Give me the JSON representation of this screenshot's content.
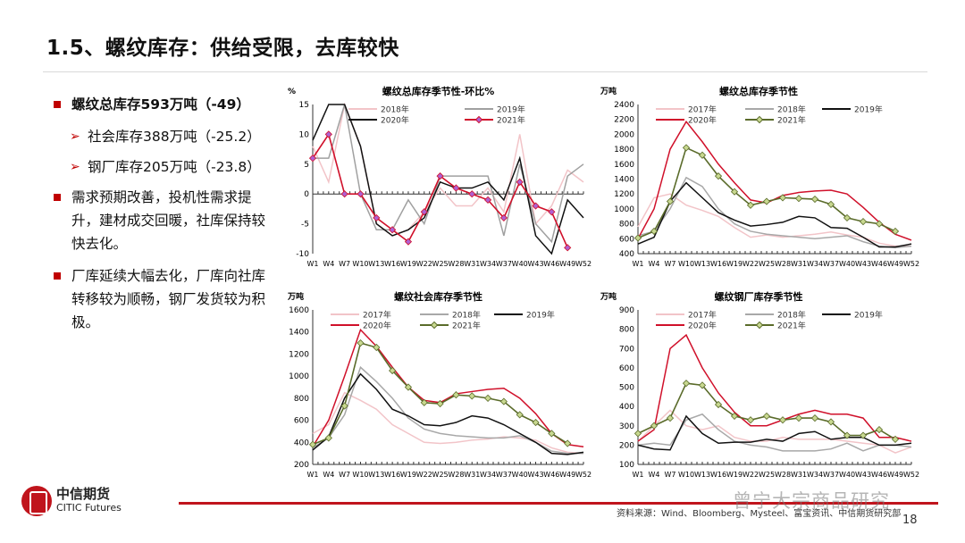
{
  "slide": {
    "title": "1.5、螺纹库存：供给受限，去库较快",
    "bullets": [
      {
        "text": "螺纹总库存593万吨（-49）",
        "subs": [
          "社会库存388万吨（-25.2）",
          "钢厂库存205万吨（-23.8）"
        ]
      },
      {
        "text": "需求预期改善，投机性需求提升，建材成交回暖，社库保持较快去化。"
      },
      {
        "text": "厂库延续大幅去化，厂库向社库转移较为顺畅，钢厂发货较为积极。"
      }
    ],
    "footer": {
      "logo_cn": "中信期货",
      "logo_en": "CITIC Futures",
      "source": "资料来源：Wind、Bloomberg、Mysteel、富宝资讯、中信期货研究部",
      "page": "18",
      "watermark": "曾宁大宗商品研究"
    },
    "colors": {
      "accent": "#c0141c"
    }
  },
  "chart_data": [
    {
      "type": "line",
      "title": "螺纹总库存季节性-环比%",
      "ylabel": "%",
      "ylim": [
        -10,
        15
      ],
      "yticks": [
        -10,
        -5,
        0,
        5,
        10,
        15
      ],
      "x": [
        "W1",
        "W4",
        "W7",
        "W10",
        "W13",
        "W16",
        "W19",
        "W22",
        "W25",
        "W28",
        "W31",
        "W34",
        "W37",
        "W40",
        "W43",
        "W46",
        "W49",
        "W52"
      ],
      "series": [
        {
          "name": "2018年",
          "color": "#f2c4c8",
          "values": [
            8,
            2,
            15,
            8,
            -5,
            -7,
            -6,
            -3,
            1,
            -2,
            -2,
            1,
            -3,
            10,
            -5,
            -2,
            4,
            2
          ]
        },
        {
          "name": "2019年",
          "color": "#a0a0a0",
          "values": [
            6,
            6,
            15,
            0,
            -6,
            -6,
            -1,
            -5,
            3,
            3,
            3,
            3,
            -7,
            5,
            -5,
            -8,
            3,
            5
          ]
        },
        {
          "name": "2020年",
          "color": "#111111",
          "values": [
            9,
            15,
            15,
            8,
            -5,
            -7,
            -6,
            -4,
            2,
            1,
            1,
            2,
            -1,
            6,
            -7,
            -10,
            -1,
            -4
          ]
        },
        {
          "name": "2021年",
          "color": "#d0102a",
          "marker": "#b060d0",
          "values": [
            6,
            10,
            0,
            0,
            -4,
            -6,
            -8,
            -3,
            3,
            1,
            0,
            -1,
            -4,
            2,
            -2,
            -3,
            -9,
            null
          ]
        }
      ]
    },
    {
      "type": "line",
      "title": "螺纹总库存季节性",
      "ylabel": "万吨",
      "ylim": [
        400,
        2400
      ],
      "yticks": [
        400,
        600,
        800,
        1000,
        1200,
        1400,
        1600,
        1800,
        2000,
        2200,
        2400
      ],
      "x": [
        "W1",
        "W4",
        "W7",
        "W10",
        "W13",
        "W16",
        "W19",
        "W22",
        "W25",
        "W28",
        "W31",
        "W34",
        "W37",
        "W40",
        "W43",
        "W46",
        "W49",
        "W52"
      ],
      "series": [
        {
          "name": "2017年",
          "color": "#f2c4c8",
          "values": [
            760,
            1150,
            1200,
            1050,
            980,
            900,
            750,
            620,
            650,
            620,
            640,
            660,
            690,
            650,
            620,
            540,
            500,
            500
          ]
        },
        {
          "name": "2018年",
          "color": "#a8a8a8",
          "values": [
            640,
            700,
            1000,
            1420,
            1300,
            1000,
            800,
            700,
            660,
            640,
            620,
            600,
            620,
            640,
            560,
            500,
            480,
            500
          ]
        },
        {
          "name": "2019年",
          "color": "#111111",
          "values": [
            530,
            620,
            1100,
            1350,
            1150,
            950,
            850,
            770,
            790,
            820,
            900,
            880,
            750,
            740,
            620,
            490,
            490,
            530
          ]
        },
        {
          "name": "2020年",
          "color": "#d0102a",
          "values": [
            600,
            1000,
            1800,
            2170,
            1900,
            1600,
            1350,
            1120,
            1080,
            1180,
            1220,
            1240,
            1250,
            1200,
            1020,
            820,
            660,
            580
          ]
        },
        {
          "name": "2021年",
          "color": "#5a6b2a",
          "marker": "#c8d890",
          "values": [
            610,
            700,
            1100,
            1820,
            1720,
            1440,
            1230,
            1050,
            1100,
            1150,
            1140,
            1130,
            1060,
            880,
            830,
            800,
            700,
            null
          ]
        }
      ]
    },
    {
      "type": "line",
      "title": "螺纹社会库存季节性",
      "ylabel": "万吨",
      "ylim": [
        200,
        1600
      ],
      "yticks": [
        200,
        400,
        600,
        800,
        1000,
        1200,
        1400,
        1600
      ],
      "x": [
        "W1",
        "W4",
        "W7",
        "W10",
        "W13",
        "W16",
        "W19",
        "W22",
        "W25",
        "W28",
        "W31",
        "W34",
        "W37",
        "W40",
        "W43",
        "W46",
        "W49",
        "W52"
      ],
      "series": [
        {
          "name": "2017年",
          "color": "#f2c4c8",
          "values": [
            480,
            560,
            850,
            780,
            700,
            560,
            480,
            400,
            390,
            400,
            420,
            430,
            450,
            440,
            420,
            350,
            310,
            300
          ]
        },
        {
          "name": "2018年",
          "color": "#a8a8a8",
          "values": [
            350,
            440,
            650,
            1080,
            950,
            800,
            620,
            520,
            480,
            460,
            450,
            440,
            440,
            460,
            400,
            320,
            300,
            300
          ]
        },
        {
          "name": "2019年",
          "color": "#111111",
          "values": [
            330,
            450,
            800,
            1020,
            880,
            700,
            640,
            560,
            550,
            580,
            640,
            620,
            560,
            480,
            400,
            300,
            290,
            310
          ]
        },
        {
          "name": "2020年",
          "color": "#d0102a",
          "values": [
            360,
            600,
            1000,
            1420,
            1270,
            1080,
            900,
            780,
            760,
            840,
            860,
            880,
            890,
            800,
            660,
            480,
            380,
            360
          ]
        },
        {
          "name": "2021年",
          "color": "#5a6b2a",
          "marker": "#c8d890",
          "values": [
            380,
            440,
            730,
            1300,
            1260,
            1050,
            900,
            760,
            750,
            830,
            820,
            800,
            770,
            650,
            580,
            480,
            390,
            null
          ]
        }
      ]
    },
    {
      "type": "line",
      "title": "螺纹钢厂库存季节性",
      "ylabel": "万吨",
      "ylim": [
        100,
        900
      ],
      "yticks": [
        100,
        200,
        300,
        400,
        500,
        600,
        700,
        800,
        900
      ],
      "x": [
        "W1",
        "W4",
        "W7",
        "W10",
        "W13",
        "W16",
        "W19",
        "W22",
        "W25",
        "W28",
        "W31",
        "W34",
        "W37",
        "W40",
        "W43",
        "W46",
        "W49",
        "W52"
      ],
      "series": [
        {
          "name": "2017年",
          "color": "#f2c4c8",
          "values": [
            220,
            300,
            380,
            300,
            280,
            300,
            240,
            220,
            220,
            240,
            230,
            230,
            230,
            220,
            210,
            200,
            160,
            190
          ]
        },
        {
          "name": "2018年",
          "color": "#a8a8a8",
          "values": [
            200,
            210,
            200,
            330,
            360,
            280,
            220,
            200,
            190,
            170,
            170,
            170,
            180,
            210,
            170,
            200,
            200,
            190
          ]
        },
        {
          "name": "2019年",
          "color": "#111111",
          "values": [
            200,
            180,
            175,
            350,
            260,
            210,
            215,
            215,
            230,
            220,
            260,
            270,
            230,
            240,
            240,
            200,
            200,
            210
          ]
        },
        {
          "name": "2020年",
          "color": "#d0102a",
          "values": [
            220,
            280,
            700,
            770,
            600,
            470,
            370,
            300,
            300,
            330,
            360,
            380,
            360,
            360,
            340,
            240,
            240,
            220
          ]
        },
        {
          "name": "2021年",
          "color": "#5a6b2a",
          "marker": "#c8d890",
          "values": [
            260,
            300,
            340,
            520,
            510,
            410,
            350,
            330,
            350,
            330,
            340,
            340,
            320,
            250,
            250,
            280,
            230,
            null
          ]
        }
      ]
    }
  ]
}
